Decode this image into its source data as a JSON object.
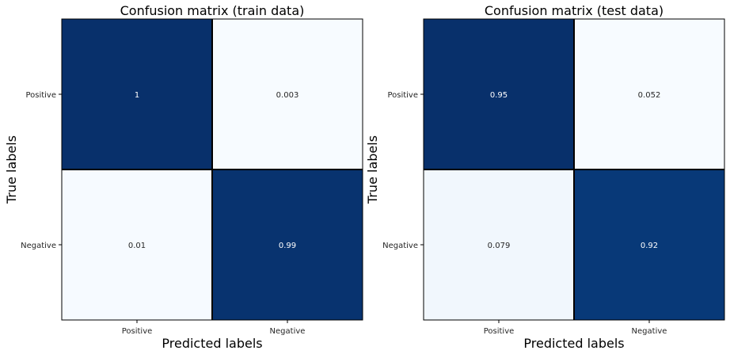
{
  "chart_data": [
    {
      "type": "heatmap",
      "title": "Confusion matrix (train data)",
      "xlabel": "Predicted labels",
      "ylabel": "True labels",
      "x_categories": [
        "Positive",
        "Negative"
      ],
      "y_categories": [
        "Positive",
        "Negative"
      ],
      "values": [
        [
          1,
          0.003
        ],
        [
          0.01,
          0.99
        ]
      ],
      "value_labels": [
        [
          "1",
          "0.003"
        ],
        [
          "0.01",
          "0.99"
        ]
      ],
      "colormap": "Blues",
      "colorbar": false,
      "grid": false
    },
    {
      "type": "heatmap",
      "title": "Confusion matrix (test data)",
      "xlabel": "Predicted labels",
      "ylabel": "True labels",
      "x_categories": [
        "Positive",
        "Negative"
      ],
      "y_categories": [
        "Positive",
        "Negative"
      ],
      "values": [
        [
          0.95,
          0.052
        ],
        [
          0.079,
          0.92
        ]
      ],
      "value_labels": [
        [
          "0.95",
          "0.052"
        ],
        [
          "0.079",
          "0.92"
        ]
      ],
      "colormap": "Blues",
      "colorbar": false,
      "grid": false
    }
  ]
}
